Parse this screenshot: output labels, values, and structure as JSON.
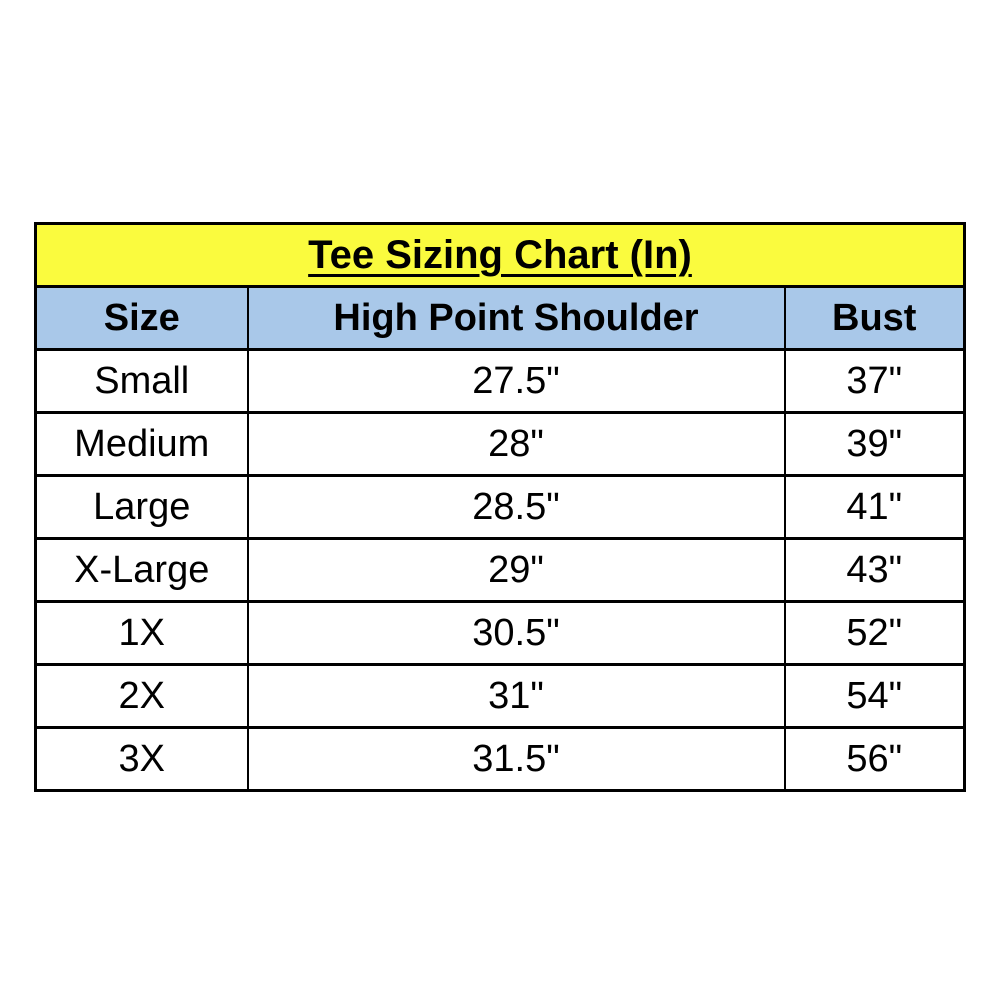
{
  "page": {
    "background": "#ffffff"
  },
  "table": {
    "title": "Tee Sizing Chart (In)",
    "title_bg": "#fafb3e",
    "header_bg": "#a9c8e9",
    "border_color": "#000000",
    "columns": [
      "Size",
      "High Point Shoulder",
      "Bust"
    ],
    "rows": [
      {
        "size": "Small",
        "hps": "27.5\"",
        "bust": "37\""
      },
      {
        "size": "Medium",
        "hps": "28\"",
        "bust": "39\""
      },
      {
        "size": "Large",
        "hps": "28.5\"",
        "bust": "41\""
      },
      {
        "size": "X-Large",
        "hps": "29\"",
        "bust": "43\""
      },
      {
        "size": "1X",
        "hps": "30.5\"",
        "bust": "52\""
      },
      {
        "size": "2X",
        "hps": "31\"",
        "bust": "54\""
      },
      {
        "size": "3X",
        "hps": "31.5\"",
        "bust": "56\""
      }
    ]
  },
  "chart_data": {
    "type": "table",
    "title": "Tee Sizing Chart (In)",
    "unit": "inches",
    "columns": [
      "Size",
      "High Point Shoulder",
      "Bust"
    ],
    "rows": [
      [
        "Small",
        "27.5\"",
        "37\""
      ],
      [
        "Medium",
        "28\"",
        "39\""
      ],
      [
        "Large",
        "28.5\"",
        "41\""
      ],
      [
        "X-Large",
        "29\"",
        "43\""
      ],
      [
        "1X",
        "30.5\"",
        "52\""
      ],
      [
        "2X",
        "31\"",
        "54\""
      ],
      [
        "3X",
        "31.5\"",
        "56\""
      ]
    ],
    "layout": {
      "title_band_color": "#fafb3e",
      "header_band_color": "#a9c8e9",
      "grid": true
    }
  }
}
